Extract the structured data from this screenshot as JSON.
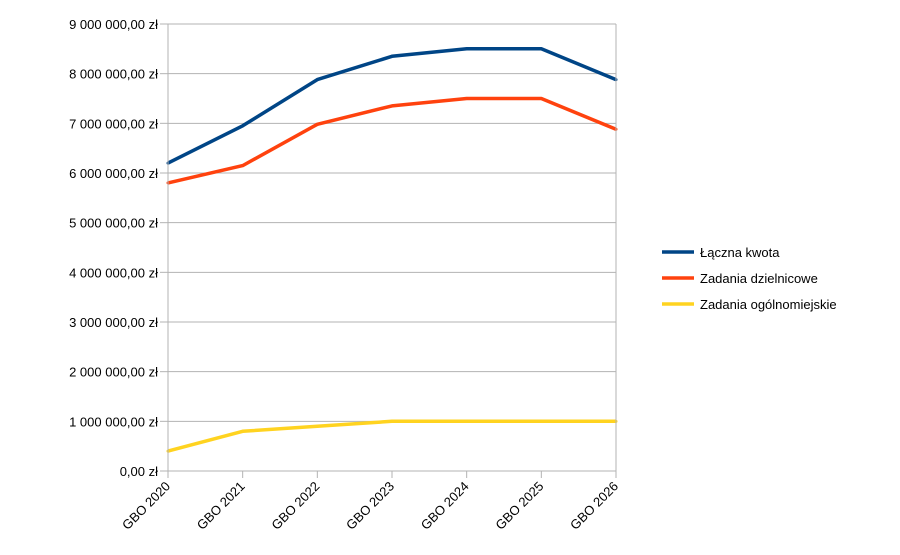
{
  "chart_data": {
    "type": "line",
    "categories": [
      "GBO 2020",
      "GBO 2021",
      "GBO 2022",
      "GBO 2023",
      "GBO 2024",
      "GBO 2025",
      "GBO 2026"
    ],
    "series": [
      {
        "name": "Łączna kwota",
        "color": "#004586",
        "values": [
          6200000,
          6950000,
          7880000,
          8350000,
          8500000,
          8500000,
          7880000
        ]
      },
      {
        "name": "Zadania dzielnicowe",
        "color": "#ff420e",
        "values": [
          5800000,
          6150000,
          6980000,
          7350000,
          7500000,
          7500000,
          6880000
        ]
      },
      {
        "name": "Zadania ogólnomiejskie",
        "color": "#ffd320",
        "values": [
          400000,
          800000,
          900000,
          1000000,
          1000000,
          1000000,
          1000000
        ]
      }
    ],
    "y_ticks": [
      "0,00 zł",
      "1 000 000,00 zł",
      "2 000 000,00 zł",
      "3 000 000,00 zł",
      "4 000 000,00 zł",
      "5 000 000,00 zł",
      "6 000 000,00 zł",
      "7 000 000,00 zł",
      "8 000 000,00 zł",
      "9 000 000,00 zł"
    ],
    "ylim": [
      0,
      9000000
    ],
    "grid": true,
    "legend_position": "right"
  }
}
